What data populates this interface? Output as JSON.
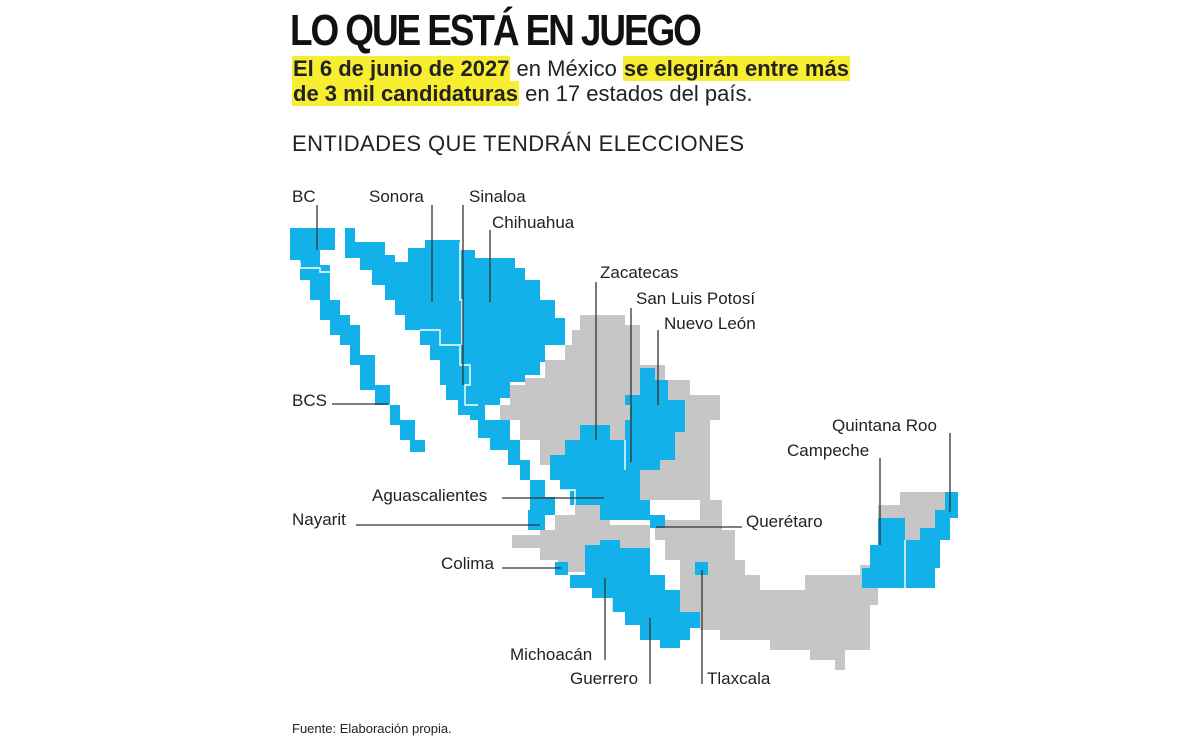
{
  "title": "LO QUE ESTÁ EN JUEGO",
  "subtitle": {
    "part1": "El 6 de junio de 2027",
    "part2": " en México ",
    "part3": "se elegirán entre más",
    "part4": "de 3 mil candidaturas",
    "part5": " en 17 estados del país."
  },
  "section_title": "ENTIDADES QUE TENDRÁN ELECCIONES",
  "source": "Fuente: Elaboración propia.",
  "colors": {
    "election_state": "#12b1ea",
    "other_state": "#c6c6c6",
    "highlight": "#f7ee31"
  },
  "legend_states": [
    "BC",
    "Sonora",
    "Sinaloa",
    "Chihuahua",
    "Zacatecas",
    "San Luis Potosí",
    "Nuevo León",
    "BCS",
    "Quintana Roo",
    "Campeche",
    "Aguascalientes",
    "Nayarit",
    "Querétaro",
    "Colima",
    "Michoacán",
    "Guerrero",
    "Tlaxcala"
  ]
}
